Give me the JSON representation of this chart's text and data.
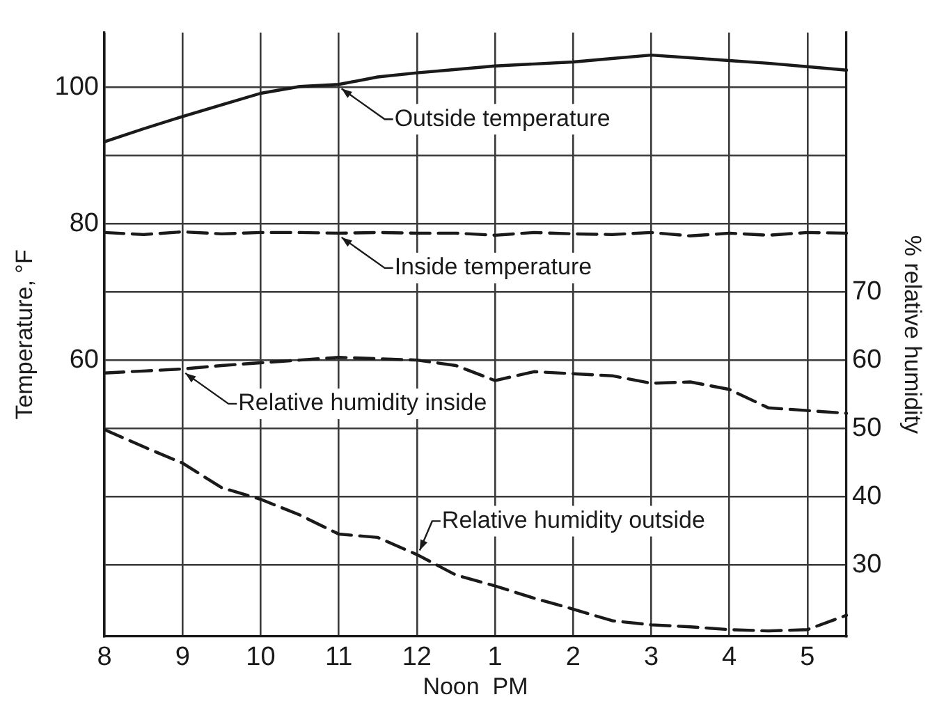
{
  "chart_data": {
    "type": "line",
    "xlabel": "Noon  PM",
    "ylabel": "Temperature, °F",
    "y2label": "% relative humidity",
    "categories": [
      "8",
      null,
      "9",
      null,
      "10",
      null,
      "11",
      null,
      "12",
      null,
      "1",
      null,
      "2",
      null,
      "3",
      null,
      "4",
      null,
      "5",
      null
    ],
    "ylim": [
      19.5,
      108
    ],
    "yticks": [
      {
        "value": 30,
        "label": null
      },
      {
        "value": 40,
        "label": null
      },
      {
        "value": 50,
        "label": null
      },
      60,
      {
        "value": 70,
        "label": null
      },
      80,
      {
        "value": 90,
        "label": null
      },
      100
    ],
    "y2lim": [
      19.5,
      108
    ],
    "y2ticks": [
      30,
      40,
      50,
      60,
      70
    ],
    "grid": true,
    "legend": false,
    "marker": "none",
    "series": [
      {
        "color": "#1a1a1a",
        "line_style": "solid",
        "values": [
          92,
          93.9,
          95.7,
          97.4,
          99.1,
          100.1,
          100.4,
          101.5,
          102.1,
          102.6,
          103.1,
          103.4,
          103.7,
          104.2,
          104.7,
          104.3,
          103.9,
          103.5,
          103,
          102.5
        ]
      },
      {
        "color": "#1a1a1a",
        "line_style": "dashed",
        "values": [
          78.7,
          78.4,
          78.8,
          78.5,
          78.7,
          78.7,
          78.6,
          78.7,
          78.6,
          78.6,
          78.3,
          78.7,
          78.5,
          78.4,
          78.7,
          78.2,
          78.6,
          78.3,
          78.7,
          78.6
        ]
      },
      {
        "color": "#1a1a1a",
        "line_style": "dashed",
        "values": [
          58.1,
          58.4,
          58.7,
          59.2,
          59.6,
          60,
          60.4,
          60.2,
          60,
          59.2,
          57,
          58.3,
          58,
          57.7,
          56.6,
          56.8,
          55.7,
          53,
          52.6,
          52.2
        ]
      },
      {
        "color": "#1a1a1a",
        "line_style": "dashed",
        "values": [
          49.8,
          47.3,
          44.9,
          41.3,
          39.6,
          37.3,
          34.5,
          34,
          31.5,
          28.5,
          26.9,
          25.1,
          23.5,
          21.8,
          21.2,
          20.9,
          20.5,
          20.3,
          20.5,
          22.6
        ]
      }
    ],
    "annotations": [
      {
        "text": "Outside temperature",
        "x": "11",
        "y": 100.4
      },
      {
        "text": "Inside temperature",
        "x": "11",
        "y": 78.6
      },
      {
        "text": "Relative humidity inside",
        "x": "9",
        "y": 58.7
      },
      {
        "text": "Relative humidity outside",
        "x": "12",
        "y": 31.5
      }
    ]
  }
}
